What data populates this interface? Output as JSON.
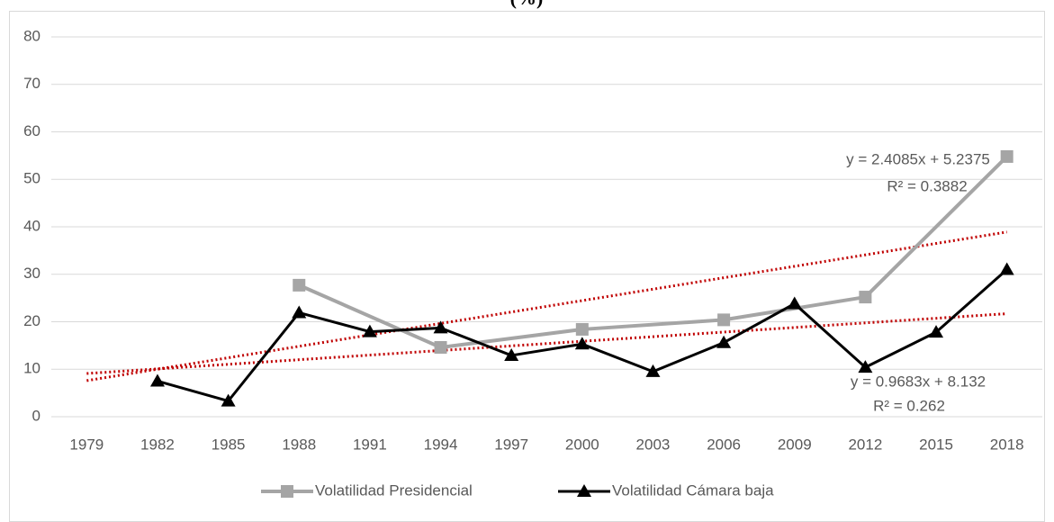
{
  "chart_data": {
    "type": "line",
    "title": "(%)",
    "x": [
      1982,
      1985,
      1988,
      1991,
      1994,
      1997,
      2000,
      2003,
      2006,
      2009,
      2012,
      2015,
      2018
    ],
    "xlim": [
      1977.5,
      2019.5
    ],
    "xticks": [
      1979,
      1982,
      1985,
      1988,
      1991,
      1994,
      1997,
      2000,
      2003,
      2006,
      2009,
      2012,
      2015,
      2018
    ],
    "ylim": [
      0,
      80
    ],
    "yticks": [
      0,
      10,
      20,
      30,
      40,
      50,
      60,
      70,
      80
    ],
    "grid": true,
    "legend": "bottom",
    "series": [
      {
        "name": "Volatilidad Presidencial",
        "color": "#a5a5a5",
        "marker": "square",
        "x": [
          1988,
          1994,
          2000,
          2006,
          2012,
          2018
        ],
        "values": [
          27.7,
          14.6,
          18.4,
          20.4,
          25.2,
          54.8
        ]
      },
      {
        "name": "Volatilidad Cámara baja",
        "color": "#000000",
        "marker": "triangle",
        "values": [
          7.5,
          3.3,
          21.9,
          17.9,
          18.7,
          12.9,
          15.3,
          9.5,
          15.6,
          23.8,
          10.4,
          17.8,
          31.0
        ]
      }
    ],
    "trendlines": [
      {
        "color": "#c00000",
        "x": [
          1979,
          2018
        ],
        "values": [
          7.6,
          38.9
        ],
        "equation": "y = 2.4085x + 5.2375",
        "r2": "R² = 0.3882"
      },
      {
        "color": "#c00000",
        "x": [
          1979,
          2018
        ],
        "values": [
          9.1,
          21.7
        ],
        "equation": "y = 0.9683x + 8.132",
        "r2": "R² = 0.262"
      }
    ]
  }
}
